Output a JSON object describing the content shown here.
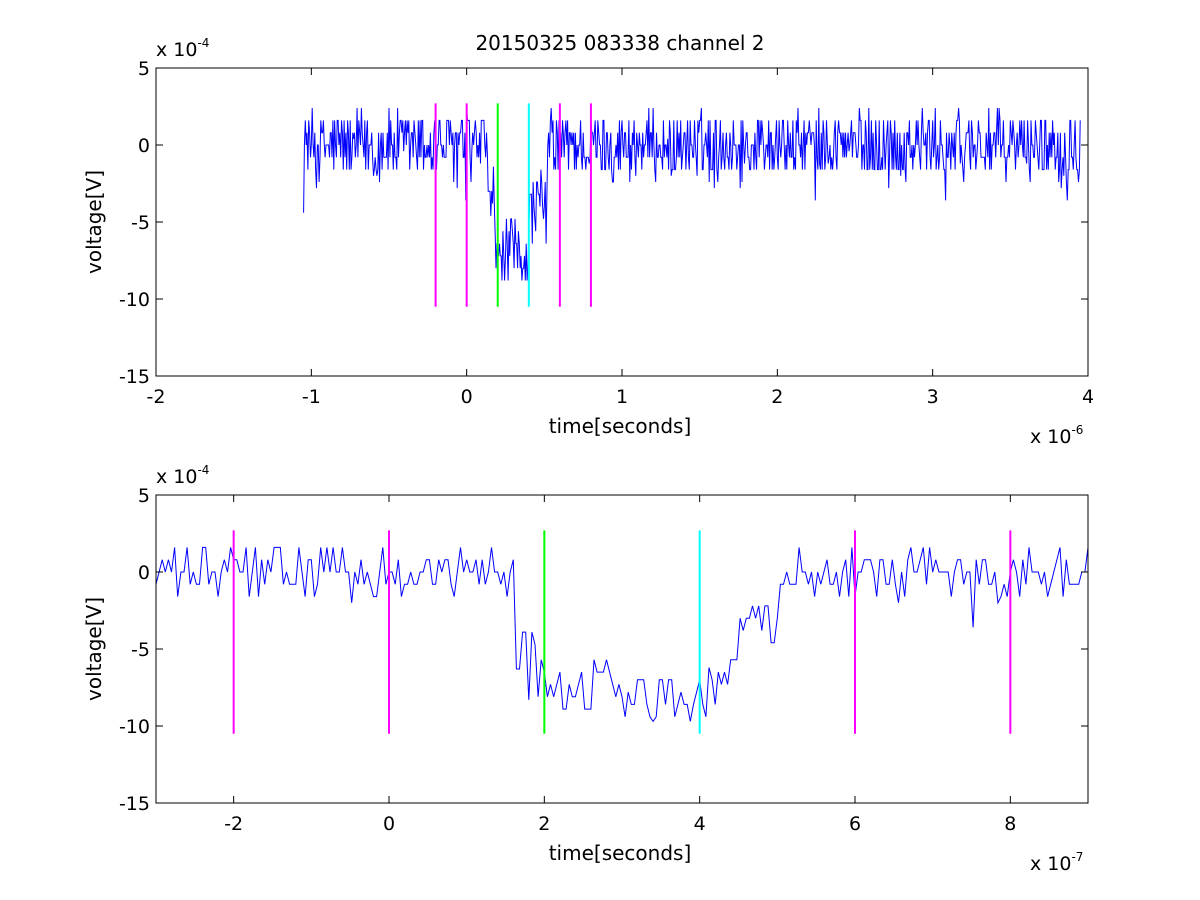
{
  "figure": {
    "title": "20150325 083338 channel 2"
  },
  "chart_data": [
    {
      "type": "line",
      "title": "20150325 083338 channel 2",
      "xlabel": "time[seconds]",
      "ylabel": "voltage[V]",
      "x_scale_label": "x 10",
      "x_scale_exponent": "-6",
      "y_scale_label": "x 10",
      "y_scale_exponent": "-4",
      "xlim": [
        -2,
        4
      ],
      "ylim": [
        -15,
        5
      ],
      "xticks": [
        -2,
        -1,
        0,
        1,
        2,
        3,
        4
      ],
      "yticks": [
        -15,
        -10,
        -5,
        0,
        5
      ],
      "grid": false,
      "series": [
        {
          "color": "#0000ff",
          "x_range": [
            -1.05,
            3.95
          ],
          "baseline": 0,
          "noise": 1.2,
          "segments": [
            {
              "from": -1.05,
              "to": 0.13,
              "level": 0
            },
            {
              "from": 0.13,
              "to": 0.18,
              "level": -3
            },
            {
              "from": 0.18,
              "to": 0.4,
              "level": -7.2
            },
            {
              "from": 0.4,
              "to": 0.52,
              "level": -4
            },
            {
              "from": 0.52,
              "to": 3.95,
              "level": 0
            }
          ],
          "min": -9.7,
          "max": 2.5
        }
      ],
      "markers": [
        {
          "x": -0.2,
          "color": "#ff00ff"
        },
        {
          "x": 0.0,
          "color": "#ff00ff"
        },
        {
          "x": 0.2,
          "color": "#00ff00"
        },
        {
          "x": 0.4,
          "color": "#00ffff"
        },
        {
          "x": 0.6,
          "color": "#ff00ff"
        },
        {
          "x": 0.8,
          "color": "#ff00ff"
        }
      ],
      "marker_range": [
        -10.5,
        2.7
      ]
    },
    {
      "type": "line",
      "xlabel": "time[seconds]",
      "ylabel": "voltage[V]",
      "x_scale_label": "x 10",
      "x_scale_exponent": "-7",
      "y_scale_label": "x 10",
      "y_scale_exponent": "-4",
      "xlim": [
        -3,
        9
      ],
      "ylim": [
        -15,
        5
      ],
      "xticks": [
        -2,
        0,
        2,
        4,
        6,
        8
      ],
      "yticks": [
        -15,
        -10,
        -5,
        0,
        5
      ],
      "grid": false,
      "series": [
        {
          "color": "#0000ff",
          "x_range": [
            -3,
            9
          ],
          "noise": 0.9,
          "segments": [
            {
              "from": -3,
              "to": 1.6,
              "level": 0
            },
            {
              "from": 1.6,
              "to": 1.9,
              "level": -5.5
            },
            {
              "from": 1.9,
              "to": 3.0,
              "level": -7.3
            },
            {
              "from": 3.0,
              "to": 4.2,
              "level": -7.8
            },
            {
              "from": 4.2,
              "to": 4.5,
              "level": -6.5
            },
            {
              "from": 4.5,
              "to": 5.0,
              "level": -3
            },
            {
              "from": 5.0,
              "to": 9,
              "level": 0
            }
          ],
          "min": -9.7,
          "max": 2.5
        }
      ],
      "markers": [
        {
          "x": -2,
          "color": "#ff00ff"
        },
        {
          "x": 0,
          "color": "#ff00ff"
        },
        {
          "x": 2,
          "color": "#00ff00"
        },
        {
          "x": 4,
          "color": "#00ffff"
        },
        {
          "x": 6,
          "color": "#ff00ff"
        },
        {
          "x": 8,
          "color": "#ff00ff"
        }
      ],
      "marker_range": [
        -10.5,
        2.7
      ]
    }
  ]
}
